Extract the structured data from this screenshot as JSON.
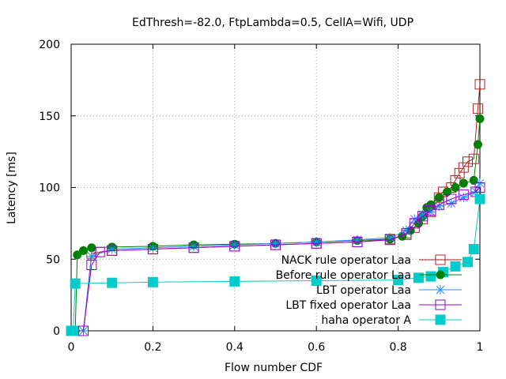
{
  "chart_data": {
    "type": "line",
    "title": "EdThresh=-82.0, FtpLambda=0.5, CellA=Wifi, UDP",
    "xlabel": "Flow number CDF",
    "ylabel": "Latency [ms]",
    "xlim": [
      0,
      1
    ],
    "ylim": [
      0,
      200
    ],
    "x_ticks": [
      "0",
      "0.2",
      "0.4",
      "0.6",
      "0.8",
      "1"
    ],
    "y_ticks": [
      "0",
      "50",
      "100",
      "150",
      "200"
    ],
    "x_tick_values": [
      0,
      0.2,
      0.4,
      0.6,
      0.8,
      1
    ],
    "y_tick_values": [
      0,
      50,
      100,
      150,
      200
    ],
    "grid": true,
    "legend_position": "bottom-right",
    "series": [
      {
        "name": "NACK rule operator Laa",
        "color": "#b22222",
        "marker": "open-square",
        "points": [
          [
            0.0,
            0
          ],
          [
            0.03,
            0
          ],
          [
            0.05,
            54
          ],
          [
            0.1,
            56
          ],
          [
            0.2,
            57
          ],
          [
            0.3,
            58
          ],
          [
            0.4,
            59
          ],
          [
            0.5,
            60
          ],
          [
            0.6,
            61
          ],
          [
            0.7,
            62
          ],
          [
            0.78,
            64
          ],
          [
            0.82,
            67
          ],
          [
            0.84,
            72
          ],
          [
            0.86,
            78
          ],
          [
            0.88,
            83
          ],
          [
            0.9,
            93
          ],
          [
            0.91,
            97
          ],
          [
            0.93,
            100
          ],
          [
            0.94,
            105
          ],
          [
            0.95,
            110
          ],
          [
            0.96,
            114
          ],
          [
            0.97,
            118
          ],
          [
            0.985,
            120
          ],
          [
            0.995,
            155
          ],
          [
            1.0,
            172
          ]
        ]
      },
      {
        "name": "Before rule operator Laa",
        "color": "#008000",
        "marker": "filled-circle",
        "points": [
          [
            0.0,
            0
          ],
          [
            0.01,
            0
          ],
          [
            0.015,
            53
          ],
          [
            0.03,
            56
          ],
          [
            0.05,
            58
          ],
          [
            0.1,
            58.5
          ],
          [
            0.2,
            59
          ],
          [
            0.3,
            60
          ],
          [
            0.4,
            60.5
          ],
          [
            0.5,
            61
          ],
          [
            0.6,
            62
          ],
          [
            0.7,
            63
          ],
          [
            0.78,
            64
          ],
          [
            0.81,
            66
          ],
          [
            0.83,
            70
          ],
          [
            0.85,
            75
          ],
          [
            0.86,
            80
          ],
          [
            0.87,
            86
          ],
          [
            0.88,
            88
          ],
          [
            0.9,
            93
          ],
          [
            0.92,
            97
          ],
          [
            0.94,
            100
          ],
          [
            0.96,
            103
          ],
          [
            0.985,
            105
          ],
          [
            0.995,
            130
          ],
          [
            1.0,
            148
          ]
        ]
      },
      {
        "name": "LBT operator Laa",
        "color": "#1e90ff",
        "marker": "asterisk",
        "points": [
          [
            0.0,
            0
          ],
          [
            0.03,
            0
          ],
          [
            0.05,
            52
          ],
          [
            0.1,
            57
          ],
          [
            0.2,
            58
          ],
          [
            0.3,
            59
          ],
          [
            0.4,
            60
          ],
          [
            0.5,
            61
          ],
          [
            0.6,
            62
          ],
          [
            0.7,
            63.5
          ],
          [
            0.78,
            65
          ],
          [
            0.82,
            70
          ],
          [
            0.84,
            78
          ],
          [
            0.86,
            81
          ],
          [
            0.88,
            83
          ],
          [
            0.9,
            87
          ],
          [
            0.93,
            89
          ],
          [
            0.96,
            93
          ],
          [
            0.99,
            97
          ],
          [
            1.0,
            103
          ]
        ]
      },
      {
        "name": "LBT fixed operator Laa",
        "color": "#9400d3",
        "marker": "open-square",
        "points": [
          [
            0.0,
            0
          ],
          [
            0.03,
            0
          ],
          [
            0.05,
            46
          ],
          [
            0.07,
            55
          ],
          [
            0.1,
            56
          ],
          [
            0.2,
            57
          ],
          [
            0.3,
            58
          ],
          [
            0.4,
            59
          ],
          [
            0.5,
            60
          ],
          [
            0.6,
            61
          ],
          [
            0.7,
            62
          ],
          [
            0.78,
            63.5
          ],
          [
            0.82,
            68
          ],
          [
            0.84,
            75
          ],
          [
            0.86,
            80
          ],
          [
            0.88,
            84
          ],
          [
            0.9,
            88
          ],
          [
            0.93,
            92
          ],
          [
            0.96,
            95
          ],
          [
            0.99,
            97
          ],
          [
            1.0,
            100
          ]
        ]
      },
      {
        "name": "haha operator A",
        "color": "#00cccc",
        "marker": "filled-square",
        "points": [
          [
            0.0,
            0
          ],
          [
            0.005,
            0
          ],
          [
            0.01,
            33
          ],
          [
            0.1,
            33.5
          ],
          [
            0.2,
            34
          ],
          [
            0.4,
            34.5
          ],
          [
            0.6,
            35
          ],
          [
            0.8,
            35.5
          ],
          [
            0.85,
            37
          ],
          [
            0.88,
            38
          ],
          [
            0.91,
            41
          ],
          [
            0.94,
            45
          ],
          [
            0.97,
            48
          ],
          [
            0.985,
            57
          ],
          [
            1.0,
            92
          ]
        ]
      }
    ]
  }
}
